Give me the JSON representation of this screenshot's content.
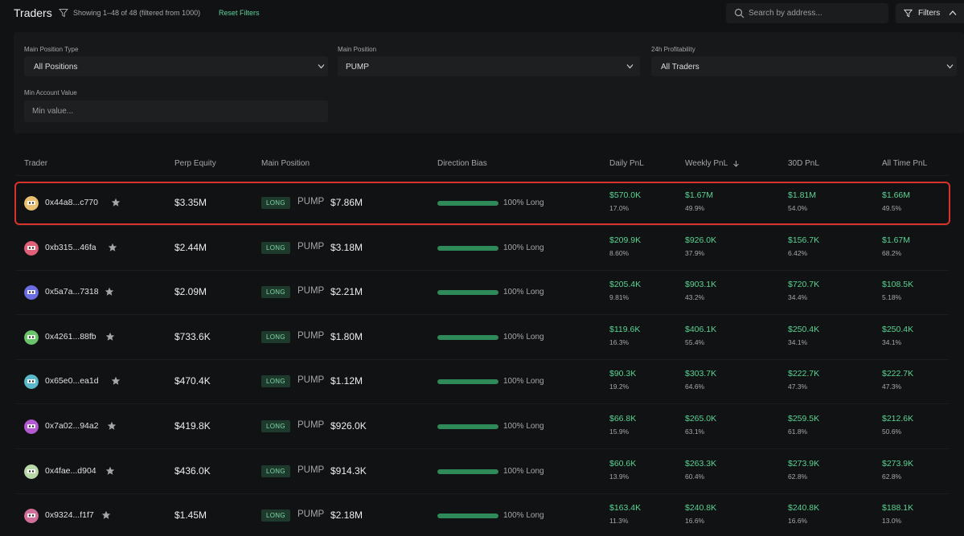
{
  "header": {
    "title": "Traders",
    "showing": "Showing 1–48 of 48 (filtered from 1000)",
    "reset_label": "Reset Filters",
    "search_placeholder": "Search by address...",
    "filters_label": "Filters"
  },
  "filters": {
    "main_position_type": {
      "label": "Main Position Type",
      "value": "All Positions"
    },
    "main_position": {
      "label": "Main Position",
      "value": "PUMP"
    },
    "profitability": {
      "label": "24h Profitability",
      "value": "All Traders"
    },
    "min_account": {
      "label": "Min Account Value",
      "placeholder": "Min value..."
    }
  },
  "columns": {
    "trader": "Trader",
    "equity": "Perp Equity",
    "main_position": "Main Position",
    "bias": "Direction Bias",
    "daily": "Daily PnL",
    "weekly": "Weekly PnL",
    "d30": "30D PnL",
    "all_time": "All Time PnL"
  },
  "colors": {
    "accent_green": "#59d393",
    "highlight_red": "#d9342b"
  },
  "rows": [
    {
      "address": "0x44a8...c770",
      "equity": "$3.35M",
      "side": "LONG",
      "symbol": "PUMP",
      "position_value": "$7.86M",
      "bias_pct": 100,
      "bias_text": "100% Long",
      "daily": "$570.0K",
      "daily_pct": "17.0%",
      "weekly": "$1.67M",
      "weekly_pct": "49.9%",
      "d30": "$1.81M",
      "d30_pct": "54.0%",
      "all_time": "$1.66M",
      "all_time_pct": "49.5%",
      "avatar_color": "#e8c070"
    },
    {
      "address": "0xb315...46fa",
      "equity": "$2.44M",
      "side": "LONG",
      "symbol": "PUMP",
      "position_value": "$3.18M",
      "bias_pct": 100,
      "bias_text": "100% Long",
      "daily": "$209.9K",
      "daily_pct": "8.60%",
      "weekly": "$926.0K",
      "weekly_pct": "37.9%",
      "d30": "$156.7K",
      "d30_pct": "6.42%",
      "all_time": "$1.67M",
      "all_time_pct": "68.2%",
      "avatar_color": "#e0607a"
    },
    {
      "address": "0x5a7a...7318",
      "equity": "$2.09M",
      "side": "LONG",
      "symbol": "PUMP",
      "position_value": "$2.21M",
      "bias_pct": 100,
      "bias_text": "100% Long",
      "daily": "$205.4K",
      "daily_pct": "9.81%",
      "weekly": "$903.1K",
      "weekly_pct": "43.2%",
      "d30": "$720.7K",
      "d30_pct": "34.4%",
      "all_time": "$108.5K",
      "all_time_pct": "5.18%",
      "avatar_color": "#6a6ee0"
    },
    {
      "address": "0x4261...88fb",
      "equity": "$733.6K",
      "side": "LONG",
      "symbol": "PUMP",
      "position_value": "$1.80M",
      "bias_pct": 100,
      "bias_text": "100% Long",
      "daily": "$119.6K",
      "daily_pct": "16.3%",
      "weekly": "$406.1K",
      "weekly_pct": "55.4%",
      "d30": "$250.4K",
      "d30_pct": "34.1%",
      "all_time": "$250.4K",
      "all_time_pct": "34.1%",
      "avatar_color": "#6bc36a"
    },
    {
      "address": "0x65e0...ea1d",
      "equity": "$470.4K",
      "side": "LONG",
      "symbol": "PUMP",
      "position_value": "$1.12M",
      "bias_pct": 100,
      "bias_text": "100% Long",
      "daily": "$90.3K",
      "daily_pct": "19.2%",
      "weekly": "$303.7K",
      "weekly_pct": "64.6%",
      "d30": "$222.7K",
      "d30_pct": "47.3%",
      "all_time": "$222.7K",
      "all_time_pct": "47.3%",
      "avatar_color": "#5bb8c8"
    },
    {
      "address": "0x7a02...94a2",
      "equity": "$419.8K",
      "side": "LONG",
      "symbol": "PUMP",
      "position_value": "$926.0K",
      "bias_pct": 100,
      "bias_text": "100% Long",
      "daily": "$66.8K",
      "daily_pct": "15.9%",
      "weekly": "$265.0K",
      "weekly_pct": "63.1%",
      "d30": "$259.5K",
      "d30_pct": "61.8%",
      "all_time": "$212.6K",
      "all_time_pct": "50.6%",
      "avatar_color": "#b45ad0"
    },
    {
      "address": "0x4fae...d904",
      "equity": "$436.0K",
      "side": "LONG",
      "symbol": "PUMP",
      "position_value": "$914.3K",
      "bias_pct": 100,
      "bias_text": "100% Long",
      "daily": "$60.6K",
      "daily_pct": "13.9%",
      "weekly": "$263.3K",
      "weekly_pct": "60.4%",
      "d30": "$273.9K",
      "d30_pct": "62.8%",
      "all_time": "$273.9K",
      "all_time_pct": "62.8%",
      "avatar_color": "#b8d8a8"
    },
    {
      "address": "0x9324...f1f7",
      "equity": "$1.45M",
      "side": "LONG",
      "symbol": "PUMP",
      "position_value": "$2.18M",
      "bias_pct": 100,
      "bias_text": "100% Long",
      "daily": "$163.4K",
      "daily_pct": "11.3%",
      "weekly": "$240.8K",
      "weekly_pct": "16.6%",
      "d30": "$240.8K",
      "d30_pct": "16.6%",
      "all_time": "$188.1K",
      "all_time_pct": "13.0%",
      "avatar_color": "#d0709a"
    }
  ]
}
